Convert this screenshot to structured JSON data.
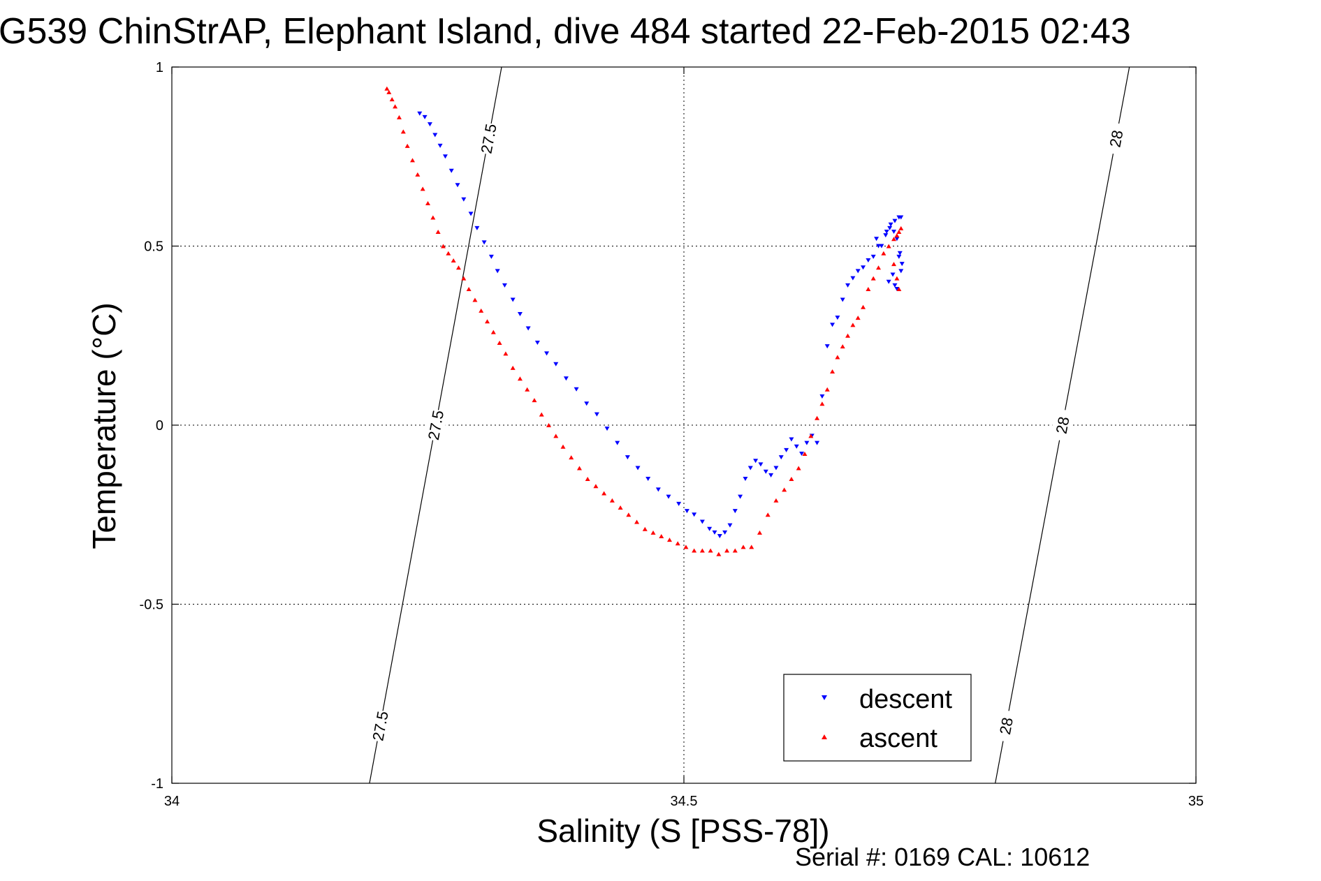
{
  "title": "G539 ChinStrAP, Elephant Island, dive 484 started 22-Feb-2015 02:43",
  "footer": "Serial #: 0169 CAL: 10612",
  "chart_data": {
    "type": "scatter",
    "title": "G539 ChinStrAP, Elephant Island, dive 484 started 22-Feb-2015 02:43",
    "xlabel": "Salinity (S [PSS-78])",
    "ylabel": "Temperature (°C)",
    "xlim": [
      34,
      35
    ],
    "ylim": [
      -1,
      1
    ],
    "xticks": [
      34,
      34.5,
      35
    ],
    "xtick_labels": [
      "34",
      "34.5",
      "35"
    ],
    "yticks": [
      -1,
      -0.5,
      0,
      0.5,
      1
    ],
    "ytick_labels": [
      "-1",
      "-0.5",
      "0",
      "0.5",
      "1"
    ],
    "grid": true,
    "legend_position": "bottom-right",
    "density_contours": [
      {
        "label": "27.5",
        "x": [
          34.193,
          34.322
        ],
        "y": [
          -1,
          1
        ]
      },
      {
        "label": "28",
        "x": [
          34.804,
          34.935
        ],
        "y": [
          -1,
          1
        ]
      }
    ],
    "series": [
      {
        "name": "descent",
        "marker": "triangle-down",
        "color": "#0000ff",
        "x": [
          34.242,
          34.247,
          34.252,
          34.257,
          34.262,
          34.267,
          34.273,
          34.279,
          34.285,
          34.292,
          34.298,
          34.305,
          34.312,
          34.318,
          34.325,
          34.333,
          34.34,
          34.348,
          34.357,
          34.366,
          34.375,
          34.385,
          34.395,
          34.405,
          34.415,
          34.425,
          34.435,
          34.445,
          34.455,
          34.465,
          34.475,
          34.485,
          34.495,
          34.503,
          34.51,
          34.518,
          34.525,
          34.53,
          34.535,
          34.54,
          34.545,
          34.55,
          34.555,
          34.56,
          34.565,
          34.57,
          34.575,
          34.58,
          34.585,
          34.59,
          34.595,
          34.6,
          34.605,
          34.61,
          34.615,
          34.62,
          34.625,
          34.63,
          34.635,
          34.64,
          34.645,
          34.65,
          34.655,
          34.66,
          34.665,
          34.67,
          34.675,
          34.68,
          34.685,
          34.69,
          34.698,
          34.702,
          34.706,
          34.71,
          34.712,
          34.688,
          34.693,
          34.697,
          34.701,
          34.705,
          34.708,
          34.711,
          34.713,
          34.7,
          34.704,
          34.708,
          34.712,
          34.706,
          34.71
        ],
        "y": [
          0.87,
          0.86,
          0.84,
          0.81,
          0.78,
          0.75,
          0.71,
          0.67,
          0.63,
          0.59,
          0.55,
          0.51,
          0.47,
          0.43,
          0.39,
          0.35,
          0.31,
          0.27,
          0.23,
          0.2,
          0.17,
          0.13,
          0.1,
          0.06,
          0.03,
          -0.01,
          -0.05,
          -0.09,
          -0.12,
          -0.15,
          -0.18,
          -0.2,
          -0.22,
          -0.24,
          -0.25,
          -0.27,
          -0.29,
          -0.3,
          -0.31,
          -0.3,
          -0.28,
          -0.24,
          -0.2,
          -0.15,
          -0.12,
          -0.1,
          -0.11,
          -0.13,
          -0.14,
          -0.12,
          -0.09,
          -0.07,
          -0.04,
          -0.06,
          -0.08,
          -0.05,
          -0.03,
          -0.05,
          0.08,
          0.22,
          0.28,
          0.3,
          0.35,
          0.39,
          0.41,
          0.43,
          0.44,
          0.46,
          0.47,
          0.5,
          0.54,
          0.56,
          0.57,
          0.58,
          0.58,
          0.52,
          0.5,
          0.53,
          0.55,
          0.54,
          0.52,
          0.48,
          0.45,
          0.4,
          0.42,
          0.38,
          0.43,
          0.39,
          0.47
        ]
      },
      {
        "name": "ascent",
        "marker": "triangle-up",
        "color": "#ff0000",
        "x": [
          34.21,
          34.212,
          34.215,
          34.218,
          34.222,
          34.226,
          34.23,
          34.235,
          34.24,
          34.245,
          34.25,
          34.255,
          34.26,
          34.265,
          34.27,
          34.275,
          34.28,
          34.285,
          34.29,
          34.296,
          34.302,
          34.308,
          34.314,
          34.32,
          34.326,
          34.333,
          34.34,
          34.347,
          34.354,
          34.361,
          34.368,
          34.375,
          34.382,
          34.39,
          34.398,
          34.406,
          34.414,
          34.422,
          34.43,
          34.438,
          34.446,
          34.454,
          34.462,
          34.47,
          34.478,
          34.486,
          34.494,
          34.502,
          34.51,
          34.518,
          34.526,
          34.534,
          34.542,
          34.55,
          34.558,
          34.566,
          34.574,
          34.582,
          34.59,
          34.598,
          34.605,
          34.612,
          34.618,
          34.624,
          34.63,
          34.635,
          34.64,
          34.645,
          34.65,
          34.655,
          34.66,
          34.665,
          34.67,
          34.675,
          34.68,
          34.685,
          34.69,
          34.695,
          34.7,
          34.705,
          34.708,
          34.71,
          34.712,
          34.705,
          34.708,
          34.71
        ],
        "y": [
          0.94,
          0.93,
          0.91,
          0.89,
          0.86,
          0.82,
          0.78,
          0.74,
          0.7,
          0.66,
          0.62,
          0.58,
          0.54,
          0.5,
          0.48,
          0.46,
          0.44,
          0.41,
          0.38,
          0.35,
          0.32,
          0.29,
          0.26,
          0.23,
          0.2,
          0.16,
          0.13,
          0.1,
          0.07,
          0.03,
          0.0,
          -0.03,
          -0.06,
          -0.09,
          -0.12,
          -0.15,
          -0.17,
          -0.19,
          -0.21,
          -0.23,
          -0.25,
          -0.27,
          -0.29,
          -0.3,
          -0.31,
          -0.32,
          -0.33,
          -0.34,
          -0.35,
          -0.35,
          -0.35,
          -0.36,
          -0.35,
          -0.35,
          -0.34,
          -0.34,
          -0.3,
          -0.25,
          -0.21,
          -0.18,
          -0.15,
          -0.12,
          -0.08,
          -0.03,
          0.02,
          0.06,
          0.1,
          0.15,
          0.19,
          0.22,
          0.25,
          0.28,
          0.3,
          0.33,
          0.38,
          0.41,
          0.44,
          0.48,
          0.5,
          0.52,
          0.53,
          0.54,
          0.55,
          0.45,
          0.41,
          0.38
        ]
      }
    ]
  }
}
